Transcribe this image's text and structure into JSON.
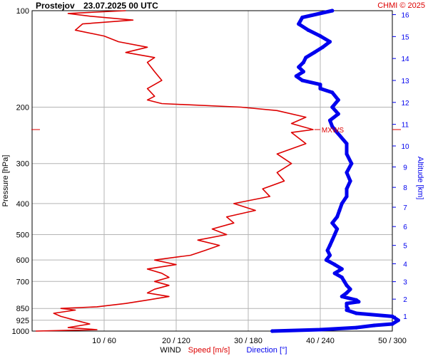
{
  "station": "Prostejov",
  "datetime": "23.07.2025 00 UTC",
  "copyright": "CHMI © 2025",
  "colors": {
    "speed": "#dd0000",
    "direction": "#0000ee",
    "grid": "#b4b4b4",
    "text": "#000000"
  },
  "chart_data": {
    "type": "line",
    "title": "Prostejov    23.07.2025 00 UTC",
    "ylabel": "Pressure [hPa]",
    "y2label": "Altitude [km]",
    "xlabel": "WIND",
    "xlabel_speed": "Speed [m/s]",
    "xlabel_direction": "Direction [°]",
    "y_scale": "log",
    "ylim": [
      1000,
      100
    ],
    "y_ticks": [
      100,
      200,
      300,
      400,
      500,
      600,
      700,
      850,
      925,
      1000
    ],
    "altitude_ticks_km": [
      1,
      2,
      3,
      4,
      5,
      6,
      7,
      8,
      9,
      10,
      11,
      12,
      13,
      14,
      15,
      16
    ],
    "x_speed_range": [
      0,
      50
    ],
    "x_direction_range": [
      0,
      300
    ],
    "x_tick_labels": [
      "10 / 60",
      "20 / 120",
      "30 / 180",
      "40 / 240",
      "50 / 300"
    ],
    "max_wind_level": {
      "label": "MXWS",
      "pressure": 235,
      "speed": 39
    },
    "series": [
      {
        "name": "Speed [m/s]",
        "unit": "m/s",
        "points": [
          [
            1000,
            0.5
          ],
          [
            990,
            9
          ],
          [
            975,
            5
          ],
          [
            950,
            8
          ],
          [
            925,
            6
          ],
          [
            900,
            4
          ],
          [
            880,
            3
          ],
          [
            860,
            6
          ],
          [
            850,
            4
          ],
          [
            840,
            9
          ],
          [
            820,
            13
          ],
          [
            800,
            16
          ],
          [
            780,
            19
          ],
          [
            760,
            16
          ],
          [
            740,
            17
          ],
          [
            720,
            19
          ],
          [
            700,
            17
          ],
          [
            680,
            19
          ],
          [
            660,
            18
          ],
          [
            640,
            16
          ],
          [
            620,
            20
          ],
          [
            600,
            17
          ],
          [
            580,
            22
          ],
          [
            560,
            24
          ],
          [
            540,
            26
          ],
          [
            520,
            23
          ],
          [
            500,
            27
          ],
          [
            480,
            25
          ],
          [
            460,
            28
          ],
          [
            440,
            27
          ],
          [
            420,
            31
          ],
          [
            400,
            28
          ],
          [
            380,
            33
          ],
          [
            360,
            32
          ],
          [
            340,
            35
          ],
          [
            320,
            34
          ],
          [
            300,
            36
          ],
          [
            280,
            34
          ],
          [
            260,
            38
          ],
          [
            240,
            36
          ],
          [
            235,
            39
          ],
          [
            225,
            36
          ],
          [
            215,
            38
          ],
          [
            205,
            34
          ],
          [
            200,
            29
          ],
          [
            195,
            18
          ],
          [
            190,
            16
          ],
          [
            185,
            17
          ],
          [
            175,
            16
          ],
          [
            165,
            18
          ],
          [
            155,
            17
          ],
          [
            145,
            16
          ],
          [
            140,
            17
          ],
          [
            135,
            13
          ],
          [
            130,
            16
          ],
          [
            125,
            12
          ],
          [
            120,
            10
          ],
          [
            115,
            6
          ],
          [
            110,
            7
          ],
          [
            107,
            14
          ],
          [
            104,
            8
          ],
          [
            102,
            5
          ],
          [
            100,
            13
          ]
        ]
      },
      {
        "name": "Direction [°]",
        "unit": "deg",
        "points": [
          [
            1000,
            200
          ],
          [
            990,
            240
          ],
          [
            975,
            270
          ],
          [
            960,
            285
          ],
          [
            950,
            300
          ],
          [
            925,
            305
          ],
          [
            900,
            300
          ],
          [
            880,
            270
          ],
          [
            860,
            262
          ],
          [
            850,
            263
          ],
          [
            840,
            262
          ],
          [
            820,
            262
          ],
          [
            810,
            272
          ],
          [
            800,
            270
          ],
          [
            780,
            258
          ],
          [
            760,
            262
          ],
          [
            740,
            265
          ],
          [
            720,
            262
          ],
          [
            700,
            260
          ],
          [
            680,
            258
          ],
          [
            660,
            252
          ],
          [
            640,
            258
          ],
          [
            620,
            252
          ],
          [
            600,
            245
          ],
          [
            580,
            248
          ],
          [
            560,
            246
          ],
          [
            540,
            248
          ],
          [
            520,
            250
          ],
          [
            500,
            252
          ],
          [
            480,
            254
          ],
          [
            460,
            250
          ],
          [
            440,
            254
          ],
          [
            420,
            256
          ],
          [
            400,
            258
          ],
          [
            380,
            262
          ],
          [
            360,
            262
          ],
          [
            340,
            265
          ],
          [
            320,
            262
          ],
          [
            300,
            266
          ],
          [
            280,
            262
          ],
          [
            260,
            262
          ],
          [
            240,
            254
          ],
          [
            230,
            250
          ],
          [
            220,
            248
          ],
          [
            210,
            255
          ],
          [
            200,
            250
          ],
          [
            190,
            255
          ],
          [
            180,
            250
          ],
          [
            175,
            240
          ],
          [
            170,
            240
          ],
          [
            165,
            225
          ],
          [
            160,
            220
          ],
          [
            155,
            226
          ],
          [
            150,
            222
          ],
          [
            145,
            226
          ],
          [
            140,
            228
          ],
          [
            135,
            235
          ],
          [
            130,
            242
          ],
          [
            125,
            248
          ],
          [
            120,
            240
          ],
          [
            115,
            230
          ],
          [
            110,
            222
          ],
          [
            105,
            225
          ],
          [
            100,
            250
          ]
        ]
      }
    ]
  }
}
